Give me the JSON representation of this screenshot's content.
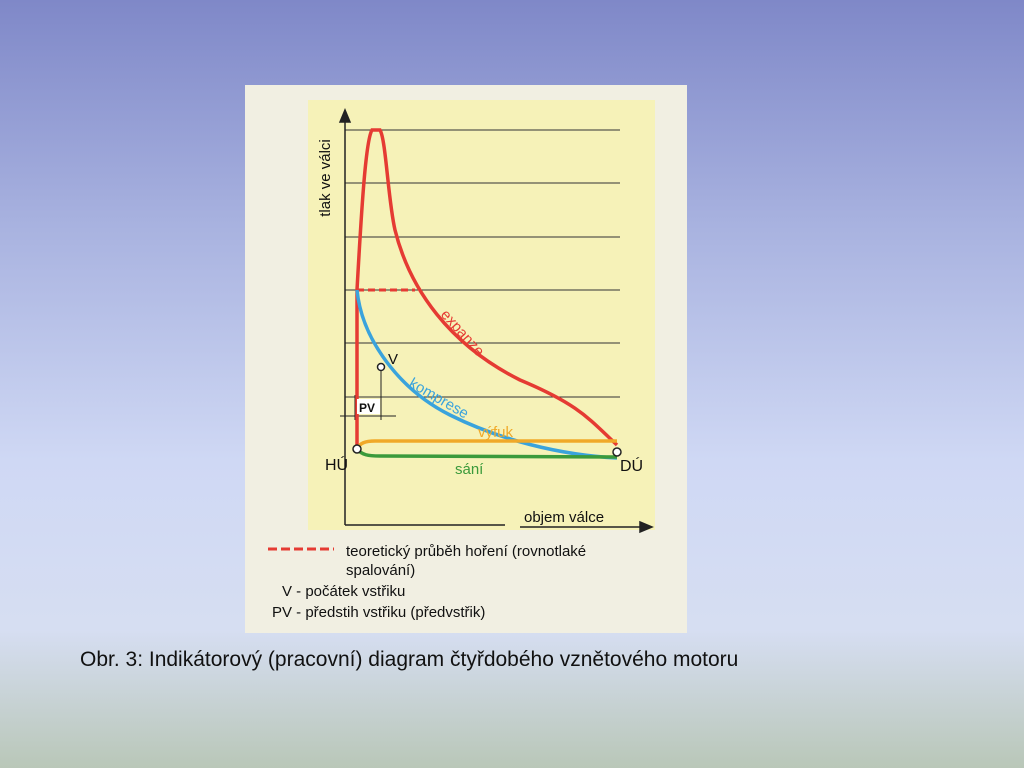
{
  "diagram": {
    "axes": {
      "y_label": "tlak ve válci",
      "x_label": "objem válce"
    },
    "curve_labels": {
      "expansion": "expanze",
      "compression": "komprese",
      "exhaust": "výfuk",
      "intake": "sání"
    },
    "point_labels": {
      "v": "V",
      "pv": "PV",
      "hu": "HÚ",
      "du": "DÚ"
    },
    "legend": {
      "dashed_line_1": "teoretický průběh hoření (rovnotlaké",
      "dashed_line_2": "spalování)",
      "v": "V - počátek vstřiku",
      "pv": "PV - předstih vstřiku (předvstřik)"
    }
  },
  "caption": "Obr. 3: Indikátorový (pracovní) diagram čtyřdobého vznětového motoru"
}
